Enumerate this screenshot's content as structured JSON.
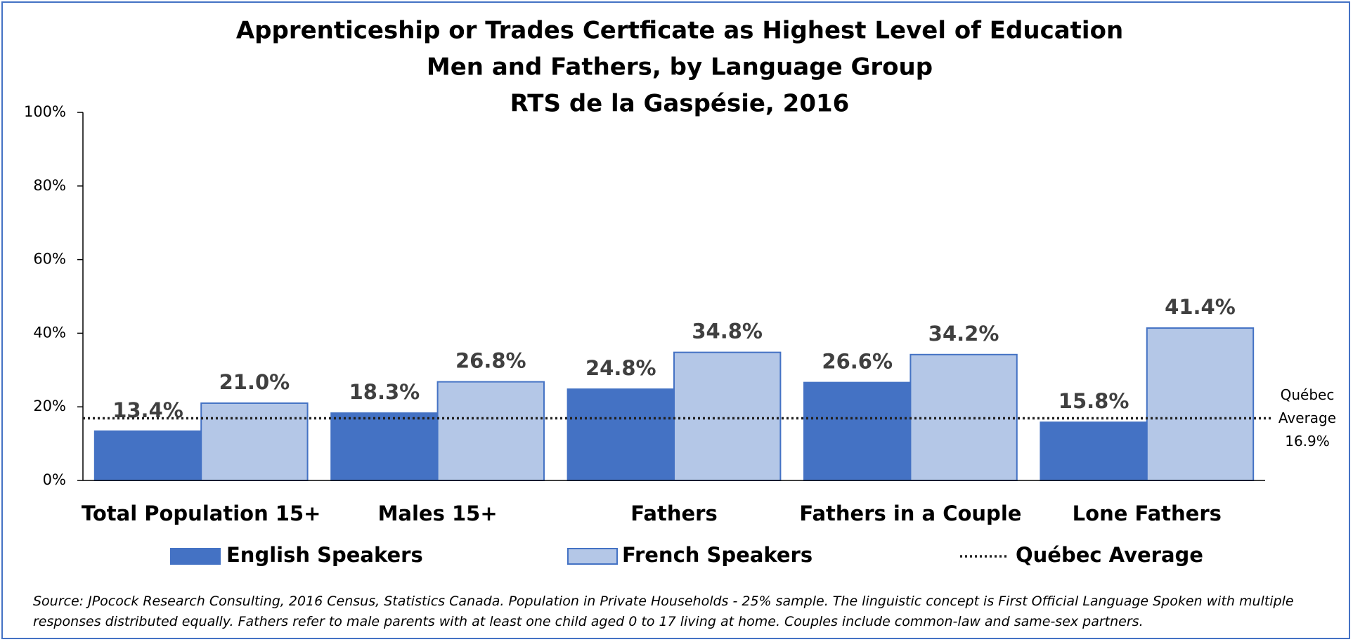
{
  "chart_data": {
    "type": "bar",
    "title": "Apprenticeship or Trades Certficate as Highest Level of Education",
    "subtitle": [
      "Men and Fathers, by Language Group",
      "RTS de la Gaspésie, 2016"
    ],
    "categories": [
      "Total Population 15+",
      "Males 15+",
      "Fathers",
      "Fathers in a Couple",
      "Lone Fathers"
    ],
    "series": [
      {
        "name": "English Speakers",
        "color": "#4472c4",
        "values": [
          13.4,
          18.3,
          24.8,
          26.6,
          15.8
        ],
        "value_labels": [
          "13.4%",
          "18.3%",
          "24.8%",
          "26.6%",
          "15.8%"
        ]
      },
      {
        "name": "French Speakers",
        "color": "#b4c7e7",
        "values": [
          21.0,
          26.8,
          34.8,
          34.2,
          41.4
        ],
        "value_labels": [
          "21.0%",
          "26.8%",
          "34.8%",
          "34.2%",
          "41.4%"
        ]
      }
    ],
    "reference_line": {
      "name": "Québec Average",
      "value": 16.9,
      "value_label": "16.9%"
    },
    "ylim": [
      0,
      100
    ],
    "yticks": [
      {
        "value": 0,
        "label": "0%"
      },
      {
        "value": 20,
        "label": "20%"
      },
      {
        "value": 40,
        "label": "40%"
      },
      {
        "value": 60,
        "label": "60%"
      },
      {
        "value": 80,
        "label": "80%"
      },
      {
        "value": 100,
        "label": "100%"
      }
    ],
    "grid": false,
    "legend": "bottom",
    "source": "Source: JPocock Research Consulting, 2016 Census, Statistics Canada. Population in Private Households - 25% sample. The linguistic concept is First Official Language Spoken with multiple responses distributed equally. Fathers refer to male parents with at least one child aged 0 to 17 living at home. Couples include common-law and same-sex partners."
  }
}
